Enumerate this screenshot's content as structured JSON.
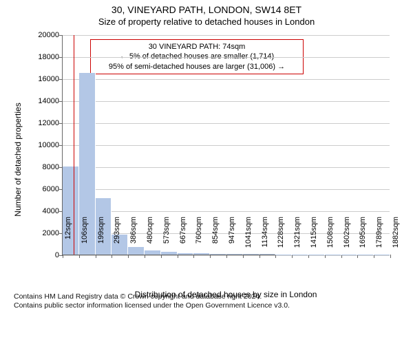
{
  "title_line1": "30, VINEYARD PATH, LONDON, SW14 8ET",
  "title_line2": "Size of property relative to detached houses in London",
  "chart": {
    "type": "histogram",
    "background_color": "#ffffff",
    "grid_color": "#cccccc",
    "axis_color": "#666666",
    "bar_color": "#b3c7e6",
    "bar_border_color": "#ffffff",
    "annotation_border_color": "#cc0000",
    "reference_line_color": "#cc0000",
    "ylabel": "Number of detached properties",
    "xlabel": "Distribution of detached houses by size in London",
    "ylim_max": 20000,
    "ytick_step": 2000,
    "xticks": [
      "12sqm",
      "106sqm",
      "199sqm",
      "293sqm",
      "386sqm",
      "480sqm",
      "573sqm",
      "667sqm",
      "760sqm",
      "854sqm",
      "947sqm",
      "1041sqm",
      "1134sqm",
      "1228sqm",
      "1321sqm",
      "1415sqm",
      "1508sqm",
      "1602sqm",
      "1695sqm",
      "1789sqm",
      "1882sqm"
    ],
    "reference_x_index": 0.66,
    "bars": [
      {
        "x_index": 0,
        "value": 8000
      },
      {
        "x_index": 1,
        "value": 16500
      },
      {
        "x_index": 2,
        "value": 5100
      },
      {
        "x_index": 3,
        "value": 1800
      },
      {
        "x_index": 4,
        "value": 700
      },
      {
        "x_index": 5,
        "value": 350
      },
      {
        "x_index": 6,
        "value": 250
      },
      {
        "x_index": 7,
        "value": 150
      },
      {
        "x_index": 8,
        "value": 120
      },
      {
        "x_index": 9,
        "value": 80
      },
      {
        "x_index": 10,
        "value": 60
      },
      {
        "x_index": 11,
        "value": 50
      },
      {
        "x_index": 12,
        "value": 40
      },
      {
        "x_index": 13,
        "value": 30
      },
      {
        "x_index": 14,
        "value": 25
      },
      {
        "x_index": 15,
        "value": 20
      },
      {
        "x_index": 16,
        "value": 15
      },
      {
        "x_index": 17,
        "value": 15
      },
      {
        "x_index": 18,
        "value": 10
      },
      {
        "x_index": 19,
        "value": 10
      }
    ],
    "annotation": {
      "line1": "30 VINEYARD PATH: 74sqm",
      "line2": "← 5% of detached houses are smaller (1,714)",
      "line3": "95% of semi-detached houses are larger (31,006) →"
    }
  },
  "footer": {
    "line1": "Contains HM Land Registry data © Crown copyright and database right 2024.",
    "line2": "Contains public sector information licensed under the Open Government Licence v3.0."
  }
}
